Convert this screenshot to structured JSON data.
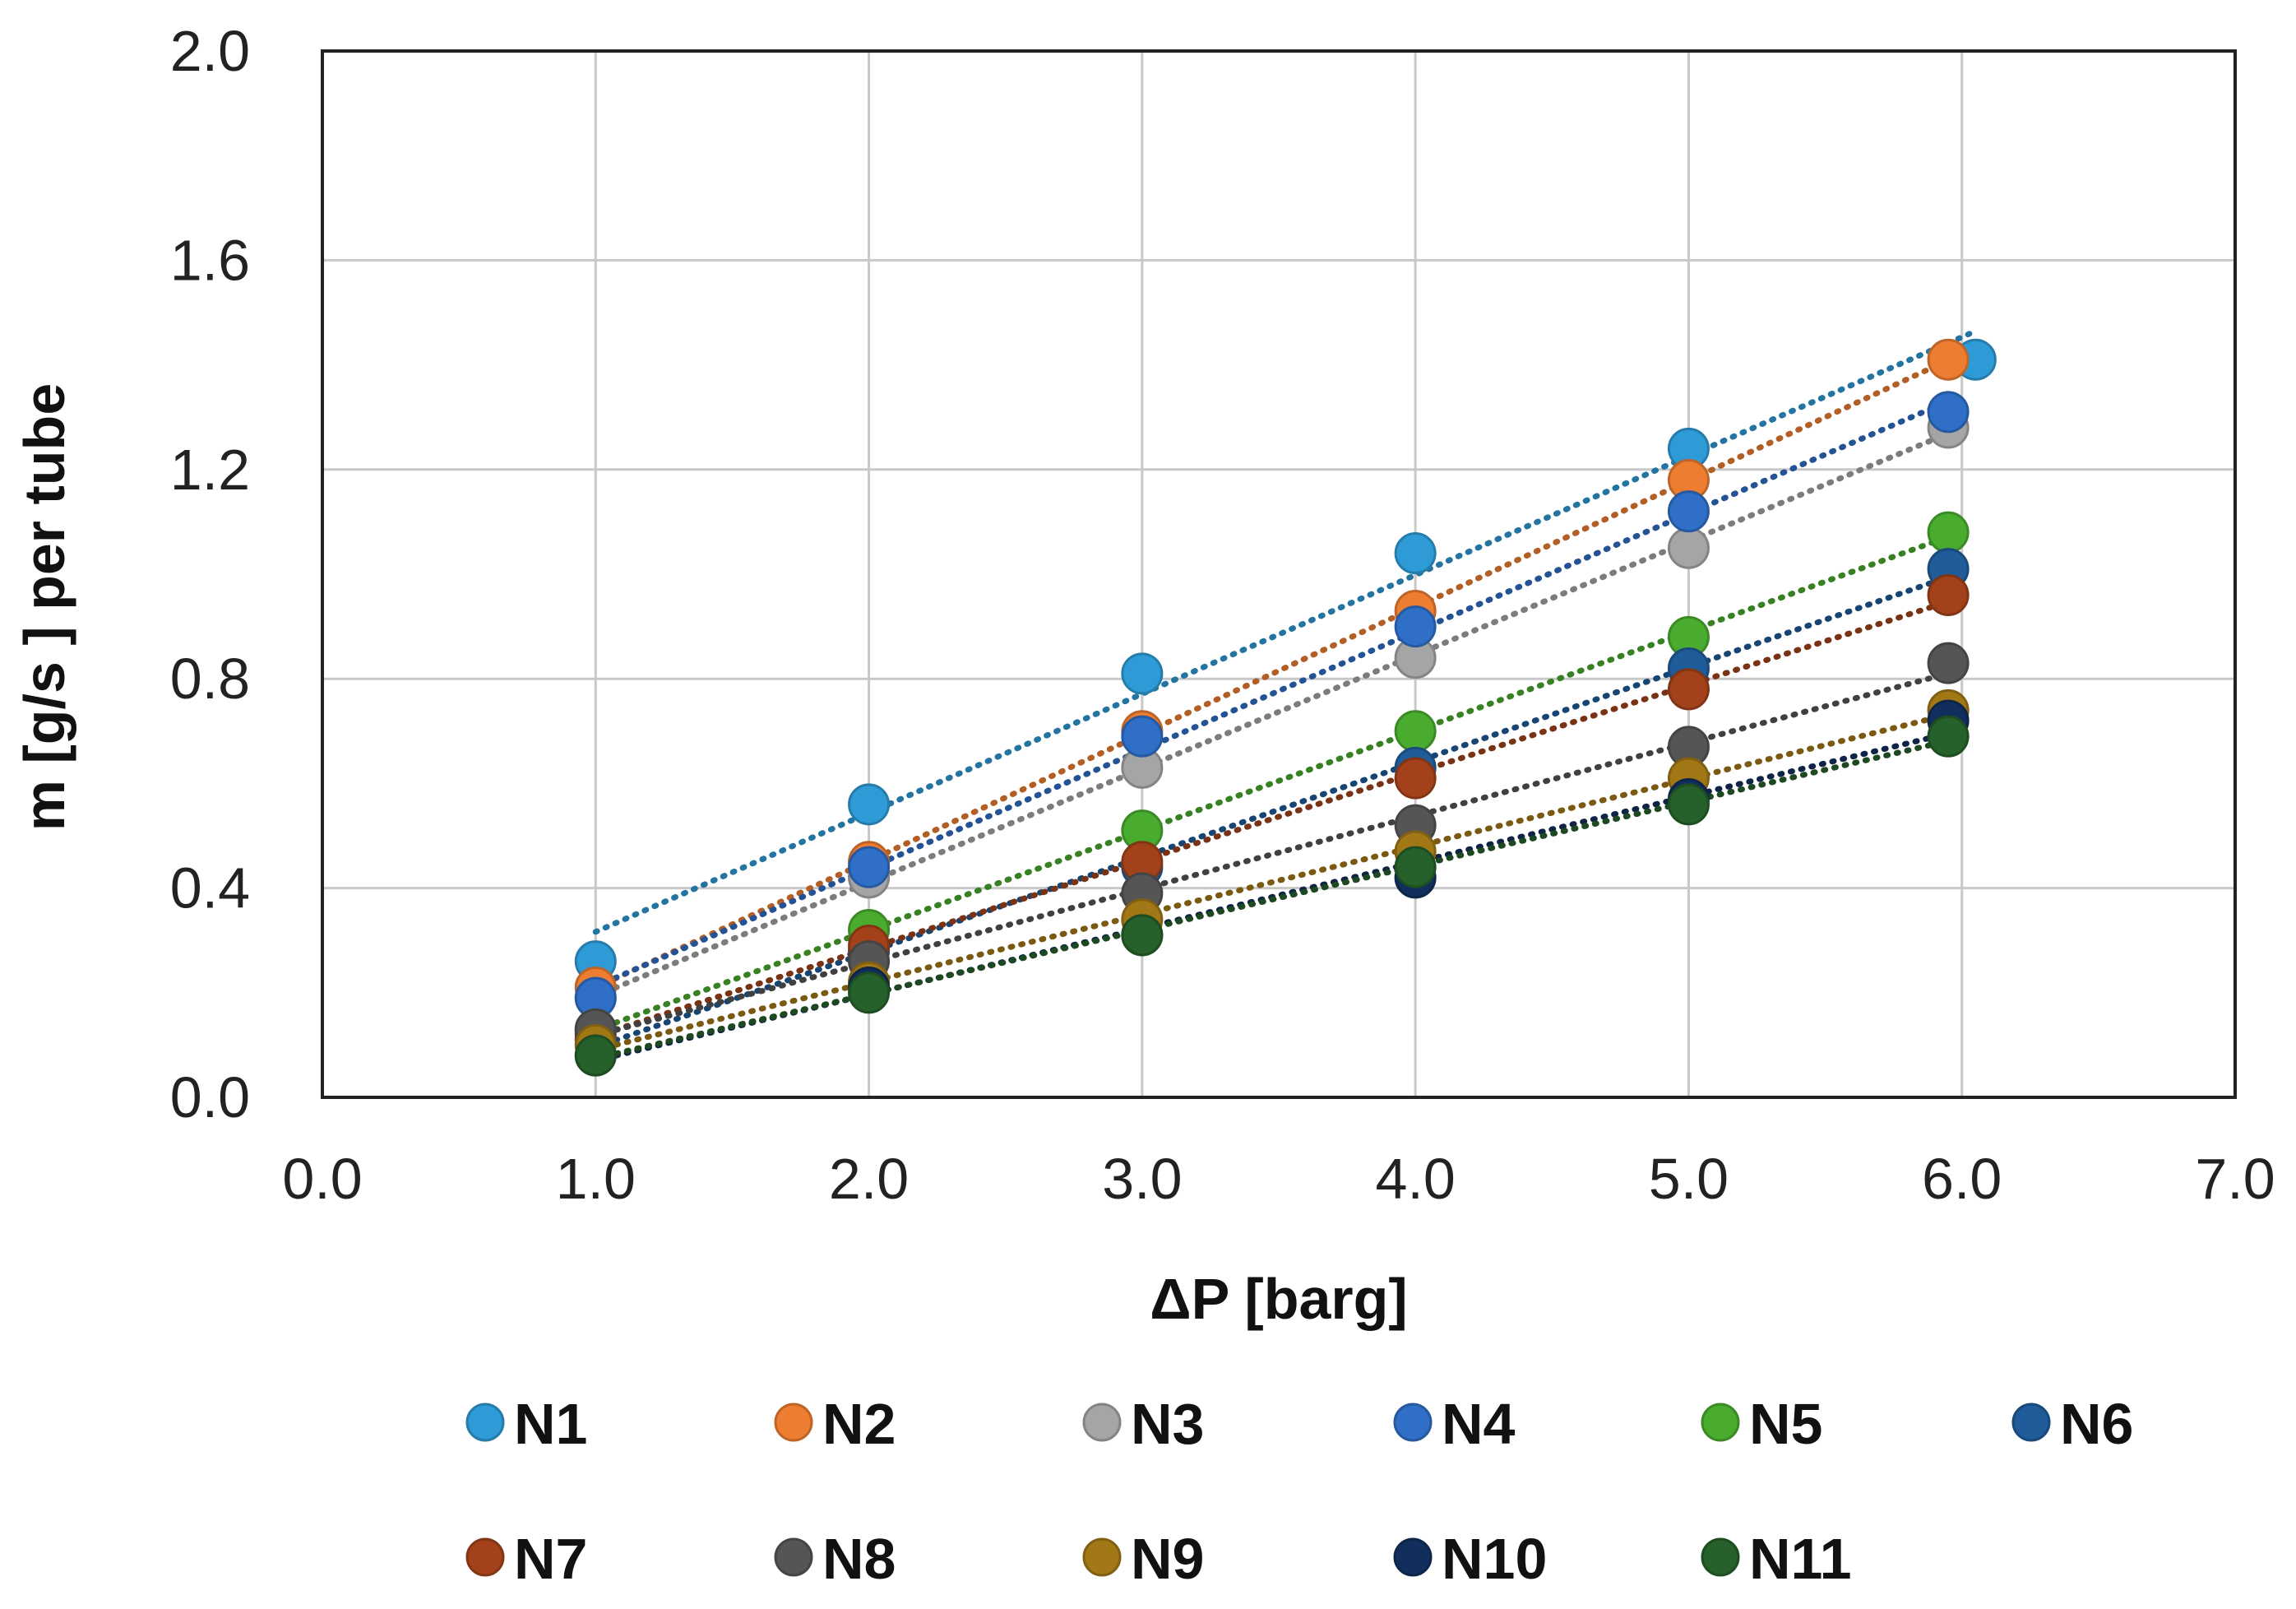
{
  "chart_data": {
    "type": "scatter",
    "title": "",
    "xlabel": "ΔP [barg]",
    "ylabel": "m [g/s ] per tube",
    "xlim": [
      0.0,
      7.0
    ],
    "ylim": [
      0.0,
      2.0
    ],
    "x_ticks": [
      "0.0",
      "1.0",
      "2.0",
      "3.0",
      "4.0",
      "5.0",
      "6.0",
      "7.0"
    ],
    "y_ticks": [
      "0.0",
      "0.4",
      "0.8",
      "1.2",
      "1.6",
      "2.0"
    ],
    "grid": true,
    "trendline": "dotted",
    "legend_position": "bottom",
    "series": [
      {
        "name": "N1",
        "color": "#2e9bd6",
        "x": [
          1.0,
          2.0,
          3.0,
          4.0,
          5.0,
          6.05
        ],
        "y": [
          0.26,
          0.56,
          0.81,
          1.04,
          1.24,
          1.41
        ]
      },
      {
        "name": "N2",
        "color": "#ed7d31",
        "x": [
          1.0,
          2.0,
          3.0,
          4.0,
          5.0,
          5.95
        ],
        "y": [
          0.21,
          0.45,
          0.7,
          0.93,
          1.18,
          1.41
        ]
      },
      {
        "name": "N3",
        "color": "#a5a5a5",
        "x": [
          1.0,
          2.0,
          3.0,
          4.0,
          5.0,
          5.95
        ],
        "y": [
          0.19,
          0.42,
          0.63,
          0.84,
          1.05,
          1.28
        ]
      },
      {
        "name": "N4",
        "color": "#2f6fc7",
        "x": [
          1.0,
          2.0,
          3.0,
          4.0,
          5.0,
          5.95
        ],
        "y": [
          0.19,
          0.44,
          0.69,
          0.9,
          1.12,
          1.31
        ]
      },
      {
        "name": "N5",
        "color": "#4aac2e",
        "x": [
          1.0,
          2.0,
          3.0,
          4.0,
          5.0,
          5.95
        ],
        "y": [
          0.13,
          0.32,
          0.51,
          0.7,
          0.88,
          1.08
        ]
      },
      {
        "name": "N6",
        "color": "#1f5c99",
        "x": [
          1.0,
          2.0,
          3.0,
          4.0,
          5.0,
          5.95
        ],
        "y": [
          0.11,
          0.28,
          0.44,
          0.63,
          0.82,
          1.01
        ]
      },
      {
        "name": "N7",
        "color": "#a3421a",
        "x": [
          1.0,
          2.0,
          3.0,
          4.0,
          5.0,
          5.95
        ],
        "y": [
          0.12,
          0.29,
          0.45,
          0.61,
          0.78,
          0.96
        ]
      },
      {
        "name": "N8",
        "color": "#555555",
        "x": [
          1.0,
          2.0,
          3.0,
          4.0,
          5.0,
          5.95
        ],
        "y": [
          0.13,
          0.26,
          0.39,
          0.52,
          0.67,
          0.83
        ]
      },
      {
        "name": "N9",
        "color": "#a27716",
        "x": [
          1.0,
          2.0,
          3.0,
          4.0,
          5.0,
          5.95
        ],
        "y": [
          0.1,
          0.22,
          0.34,
          0.47,
          0.61,
          0.74
        ]
      },
      {
        "name": "N10",
        "color": "#122e5c",
        "x": [
          1.0,
          2.0,
          3.0,
          4.0,
          5.0,
          5.95
        ],
        "y": [
          0.08,
          0.21,
          0.31,
          0.42,
          0.57,
          0.72
        ]
      },
      {
        "name": "N11",
        "color": "#26602a",
        "x": [
          1.0,
          2.0,
          3.0,
          4.0,
          5.0,
          5.95
        ],
        "y": [
          0.08,
          0.2,
          0.31,
          0.44,
          0.56,
          0.69
        ]
      }
    ]
  }
}
